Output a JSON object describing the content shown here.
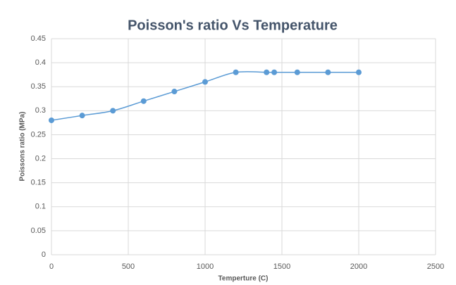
{
  "chart_data": {
    "type": "scatter",
    "title": "Poisson's ratio Vs Temperature",
    "x_label": "Temperture (C)",
    "y_label": "Poissons ratio (MPa)",
    "series": [
      {
        "name": "Poisson's ratio",
        "color": "#5b9bd5",
        "x": [
          0,
          200,
          400,
          600,
          800,
          1000,
          1200,
          1400,
          1450,
          1600,
          1800,
          2000
        ],
        "values": [
          0.28,
          0.29,
          0.3,
          0.32,
          0.34,
          0.36,
          0.38,
          0.38,
          0.38,
          0.38,
          0.38,
          0.38
        ]
      }
    ],
    "smooth": true,
    "xlim": [
      0,
      2500
    ],
    "xticks": [
      0,
      500,
      1000,
      1500,
      2000,
      2500
    ],
    "ylim": [
      0,
      0.45
    ],
    "yticks": [
      0,
      0.05,
      0.1,
      0.15,
      0.2,
      0.25,
      0.3,
      0.35,
      0.4,
      0.45
    ],
    "grid": true
  }
}
